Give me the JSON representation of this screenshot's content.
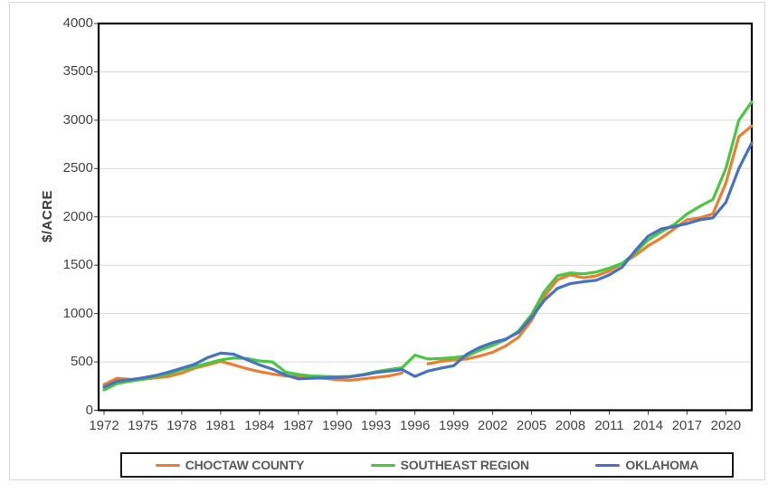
{
  "chart_data": {
    "type": "line",
    "title": "",
    "xlabel": "",
    "ylabel": "$/ACRE",
    "ylim": [
      0,
      4000
    ],
    "ytick_labels": [
      "0",
      "500",
      "1000",
      "1500",
      "2000",
      "2500",
      "3000",
      "3500",
      "4000"
    ],
    "xtick_labels": [
      "1972",
      "1975",
      "1978",
      "1981",
      "1984",
      "1987",
      "1990",
      "1993",
      "1996",
      "1999",
      "2002",
      "2005",
      "2008",
      "2011",
      "2014",
      "2017",
      "2020"
    ],
    "grid": "horizontal",
    "legend_position": "bottom",
    "years": [
      1972,
      1973,
      1974,
      1975,
      1976,
      1977,
      1978,
      1979,
      1980,
      1981,
      1982,
      1983,
      1984,
      1985,
      1986,
      1987,
      1988,
      1989,
      1990,
      1991,
      1992,
      1993,
      1994,
      1995,
      1996,
      1997,
      1998,
      1999,
      2000,
      2001,
      2002,
      2003,
      2004,
      2005,
      2006,
      2007,
      2008,
      2009,
      2010,
      2011,
      2012,
      2013,
      2014,
      2015,
      2016,
      2017,
      2018,
      2019,
      2020,
      2021,
      2022
    ],
    "series": [
      {
        "name": "CHOCTAW COUNTY",
        "color": "#ED7D31",
        "values": [
          265,
          330,
          320,
          320,
          335,
          350,
          385,
          435,
          470,
          505,
          470,
          430,
          400,
          375,
          355,
          345,
          335,
          330,
          315,
          310,
          325,
          340,
          355,
          385,
          null,
          480,
          505,
          520,
          530,
          560,
          600,
          665,
          755,
          930,
          1180,
          1350,
          1400,
          1370,
          1390,
          1440,
          1520,
          1600,
          1700,
          1780,
          1875,
          1970,
          1990,
          2030,
          2350,
          2830,
          2940
        ]
      },
      {
        "name": "SOUTHEAST REGION",
        "color": "#47C83E",
        "values": [
          210,
          275,
          300,
          320,
          350,
          375,
          420,
          450,
          485,
          520,
          540,
          535,
          510,
          500,
          395,
          370,
          355,
          350,
          345,
          350,
          370,
          400,
          420,
          440,
          570,
          530,
          535,
          545,
          560,
          620,
          670,
          730,
          820,
          990,
          1230,
          1390,
          1420,
          1410,
          1430,
          1470,
          1520,
          1630,
          1760,
          1845,
          1920,
          2030,
          2110,
          2180,
          2500,
          3000,
          3190
        ]
      },
      {
        "name": "OKLAHOMA",
        "color": "#4472C4",
        "values": [
          240,
          300,
          315,
          335,
          360,
          395,
          435,
          475,
          545,
          590,
          580,
          525,
          470,
          425,
          365,
          325,
          330,
          335,
          340,
          345,
          365,
          390,
          405,
          420,
          350,
          405,
          435,
          460,
          580,
          650,
          700,
          735,
          805,
          960,
          1140,
          1260,
          1310,
          1330,
          1345,
          1400,
          1480,
          1650,
          1800,
          1875,
          1900,
          1930,
          1970,
          1990,
          2150,
          2500,
          2765
        ]
      }
    ]
  },
  "style": {
    "background": "#FFFFFF",
    "figure_border_color": "#D9D9D9",
    "plot_border_color": "#000000",
    "gridline_color": "#D9D9D9",
    "tick_label_color": "#444444",
    "legend_text_color": "#595959",
    "legend_border_color": "#1A1A1A"
  }
}
